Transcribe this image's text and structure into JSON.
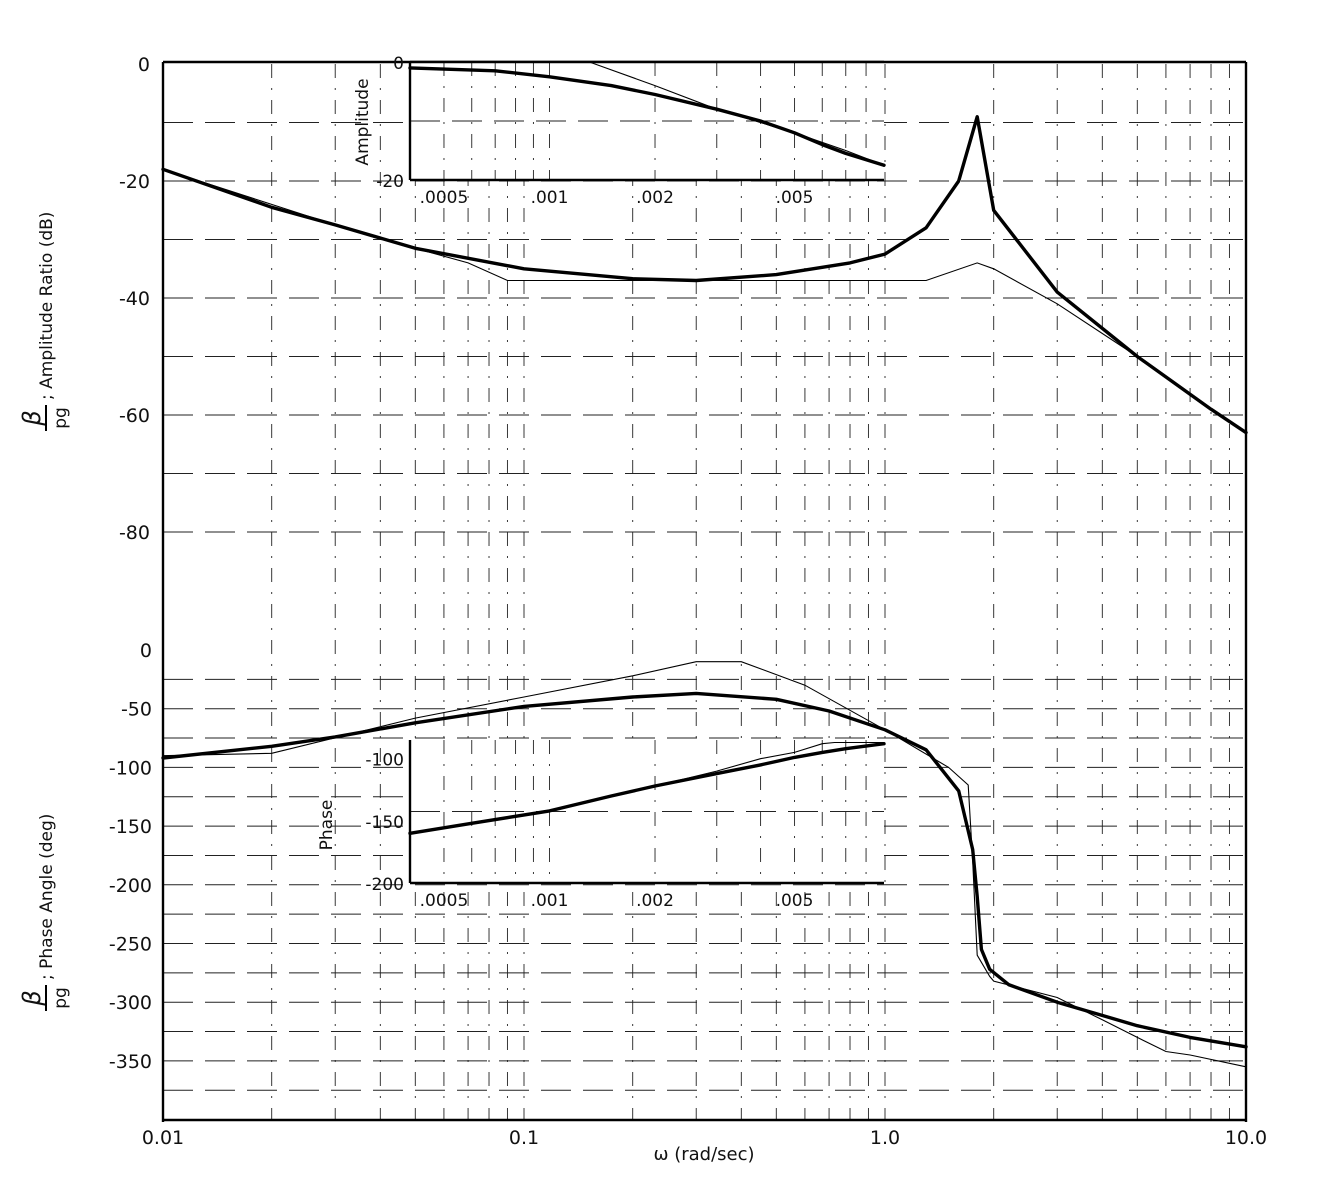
{
  "chart_data": [
    {
      "type": "line",
      "panel": "amplitude",
      "ylabel_num": "β",
      "ylabel_den": "p_g",
      "ylabel_den_text": "pg",
      "ylabel_text": "; Amplitude Ratio (dB)",
      "xscale": "log",
      "xlim": [
        0.01,
        10.0
      ],
      "ylim": [
        -90,
        0
      ],
      "yticks": [
        0,
        -20,
        -40,
        -60,
        -80
      ],
      "ytick_labels": [
        "0",
        "-20",
        "-40",
        "-60",
        "-80"
      ],
      "grid": true,
      "series": [
        {
          "style": "thick",
          "x": [
            0.01,
            0.02,
            0.03,
            0.05,
            0.1,
            0.2,
            0.3,
            0.5,
            0.8,
            1.0,
            1.3,
            1.6,
            1.8,
            2.0,
            3.0,
            5.0,
            8.0,
            10.0
          ],
          "y": [
            -18,
            -24.5,
            -27.5,
            -31.5,
            -35,
            -36.7,
            -37,
            -36,
            -34,
            -32.5,
            -28,
            -20,
            -9,
            -25,
            -39,
            -50,
            -59,
            -63
          ]
        },
        {
          "style": "thin",
          "x": [
            0.01,
            0.03,
            0.05,
            0.07,
            0.09,
            0.2,
            0.5,
            1.0,
            1.3,
            1.8,
            2.0,
            3.0,
            5.0,
            8.0,
            10.0
          ],
          "y": [
            -18,
            -27.5,
            -31.5,
            -34,
            -37,
            -37,
            -37,
            -37,
            -37,
            -34,
            -35,
            -41,
            -50,
            -59,
            -63
          ]
        }
      ]
    },
    {
      "type": "line",
      "panel": "amplitude-inset",
      "ylabel": "Amplitude",
      "xscale": "log",
      "xlim": [
        0.0004,
        0.009
      ],
      "ylim": [
        -20,
        0
      ],
      "xticks": [
        0.0005,
        0.001,
        0.002,
        0.005
      ],
      "xtick_labels": [
        ".0005",
        ".001",
        ".002",
        ".005"
      ],
      "yticks": [
        0,
        -20
      ],
      "ytick_labels": [
        "0",
        "-20"
      ],
      "series": [
        {
          "style": "thick",
          "x": [
            0.0004,
            0.0007,
            0.001,
            0.0015,
            0.002,
            0.003,
            0.004,
            0.005,
            0.006,
            0.007,
            0.009
          ],
          "y": [
            -1,
            -1.5,
            -2.5,
            -4,
            -5.5,
            -8,
            -10,
            -12,
            -14,
            -15.5,
            -17.5
          ]
        },
        {
          "style": "thin",
          "x": [
            0.0004,
            0.0013,
            0.002,
            0.003,
            0.005,
            0.007,
            0.009
          ],
          "y": [
            0,
            0,
            -4,
            -8,
            -12,
            -15,
            -17.5
          ]
        }
      ]
    },
    {
      "type": "line",
      "panel": "phase",
      "ylabel_num": "β",
      "ylabel_den": "p_g",
      "ylabel_den_text": "pg",
      "ylabel_text": "; Phase Angle (deg)",
      "xlabel": "ω (rad/sec)",
      "xscale": "log",
      "xlim": [
        0.01,
        10.0
      ],
      "ylim": [
        -395,
        15
      ],
      "xticks": [
        0.01,
        0.1,
        1.0,
        10.0
      ],
      "xtick_labels": [
        "0.01",
        "0.1",
        "1.0",
        "10.0"
      ],
      "yticks": [
        0,
        -50,
        -100,
        -150,
        -200,
        -250,
        -300,
        -350
      ],
      "ytick_labels": [
        "0",
        "-50",
        "-100",
        "-150",
        "-200",
        "-250",
        "-300",
        "-350"
      ],
      "grid": true,
      "series": [
        {
          "style": "thick",
          "x": [
            0.01,
            0.02,
            0.03,
            0.05,
            0.1,
            0.2,
            0.3,
            0.5,
            0.7,
            1.0,
            1.3,
            1.6,
            1.75,
            1.8,
            1.85,
            1.95,
            2.2,
            3.0,
            5.0,
            7.0,
            10.0
          ],
          "y": [
            -92,
            -82,
            -74,
            -62,
            -48,
            -40,
            -37,
            -42,
            -52,
            -68,
            -85,
            -120,
            -170,
            -210,
            -255,
            -272,
            -285,
            -300,
            -320,
            -330,
            -338
          ]
        },
        {
          "style": "thin",
          "x": [
            0.01,
            0.02,
            0.05,
            0.1,
            0.2,
            0.3,
            0.4,
            0.6,
            1.0,
            1.5,
            1.7,
            1.75,
            1.8,
            1.95,
            2.0,
            3.0,
            4.0,
            5.0,
            6.0,
            7.0,
            10.0
          ],
          "y": [
            -90,
            -88,
            -58,
            -40,
            -22,
            -10,
            -10,
            -30,
            -68,
            -100,
            -115,
            -180,
            -260,
            -278,
            -282,
            -296,
            -315,
            -330,
            -342,
            -345,
            -355
          ]
        }
      ]
    },
    {
      "type": "line",
      "panel": "phase-inset",
      "ylabel": "Phase",
      "xscale": "log",
      "xlim": [
        0.0004,
        0.009
      ],
      "ylim": [
        -200,
        -85
      ],
      "xticks": [
        0.0005,
        0.001,
        0.002,
        0.005
      ],
      "xtick_labels": [
        ".0005",
        ".001",
        ".002",
        ".005"
      ],
      "yticks": [
        -100,
        -150,
        -200
      ],
      "ytick_labels": [
        "-100",
        "-150",
        "-200"
      ],
      "series": [
        {
          "style": "thick",
          "x": [
            0.0004,
            0.0006,
            0.001,
            0.0015,
            0.002,
            0.003,
            0.004,
            0.005,
            0.006,
            0.007,
            0.009
          ],
          "y": [
            -160,
            -152,
            -142,
            -130,
            -122,
            -112,
            -105,
            -99,
            -95,
            -92,
            -88
          ]
        },
        {
          "style": "thin",
          "x": [
            0.0004,
            0.001,
            0.002,
            0.003,
            0.004,
            0.005,
            0.006,
            0.0065,
            0.009
          ],
          "y": [
            -160,
            -142,
            -122,
            -110,
            -100,
            -95,
            -88,
            -87,
            -87
          ]
        }
      ]
    }
  ]
}
